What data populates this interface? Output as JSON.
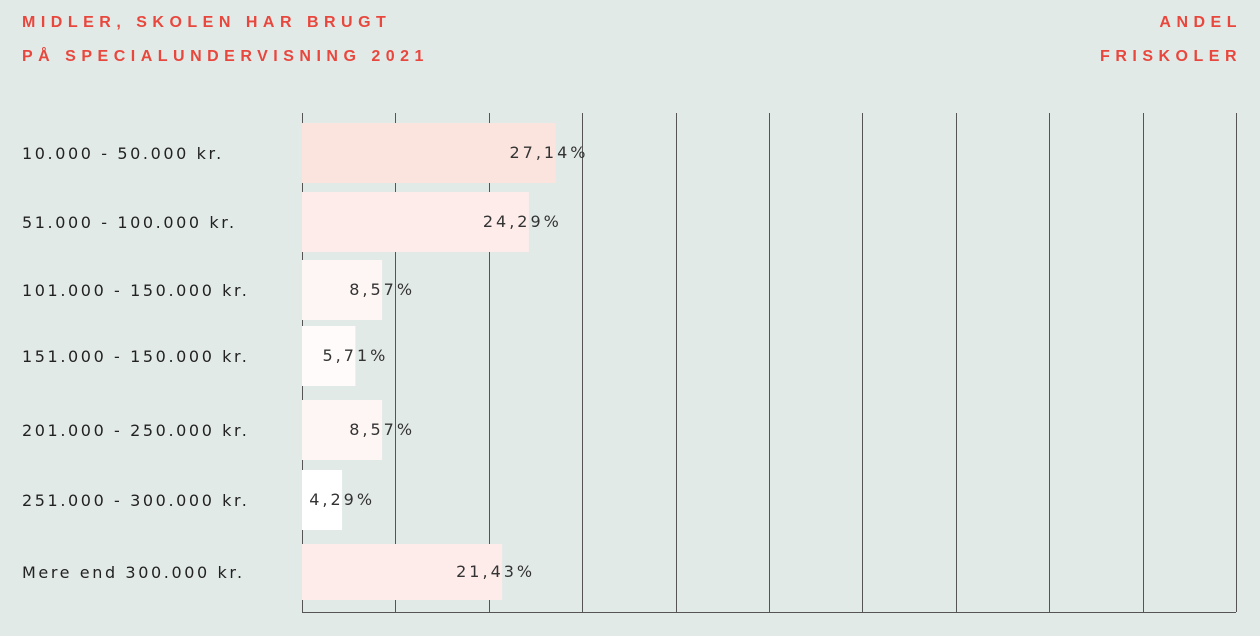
{
  "header": {
    "left_line1": "MIDLER, SKOLEN HAR BRUGT",
    "left_line2": "PÅ SPECIALUNDERVISNING 2021",
    "right_line1": "ANDEL",
    "right_line2": "FRISKOLER"
  },
  "chart_data": {
    "type": "bar",
    "orientation": "horizontal",
    "categories": [
      "10.000 - 50.000 kr.",
      "51.000 - 100.000 kr.",
      "101.000 - 150.000 kr.",
      "151.000 - 150.000 kr.",
      "201.000 - 250.000 kr.",
      "251.000 - 300.000 kr.",
      "Mere end 300.000 kr."
    ],
    "values": [
      27.14,
      24.29,
      8.57,
      5.71,
      8.57,
      4.29,
      21.43
    ],
    "value_labels": [
      "27,14%",
      "24,29%",
      "8,57%",
      "5,71%",
      "8,57%",
      "4,29%",
      "21,43%"
    ],
    "xlim": [
      0,
      100
    ],
    "x_gridlines": [
      0,
      10,
      20,
      30,
      40,
      50,
      60,
      70,
      80,
      90,
      100
    ],
    "grid": true,
    "legend": "none",
    "bar_colors": [
      "#fce4de",
      "#fdecea",
      "#fef6f4",
      "#fffbfa",
      "#fef6f4",
      "#ffffff",
      "#fdecea"
    ],
    "grid_color": "#555555",
    "header_color": "#e8473d"
  }
}
